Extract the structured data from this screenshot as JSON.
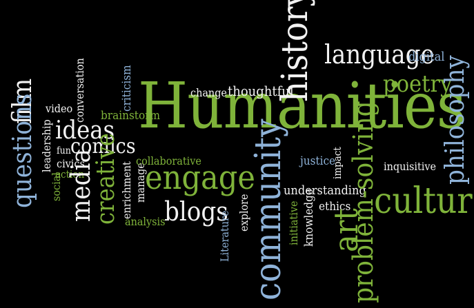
{
  "colors": {
    "background": "#000000",
    "green": "#7fb33a",
    "light_blue": "#8fb3d9",
    "white": "#f2f2f2",
    "gray": "#b9c2b0"
  },
  "words": [
    {
      "id": "humanities",
      "text": "Humanities",
      "color": "green",
      "rot": 0
    },
    {
      "id": "history",
      "text": "history",
      "color": "white",
      "rot": -90
    },
    {
      "id": "language",
      "text": "language",
      "color": "white",
      "rot": 0
    },
    {
      "id": "digital",
      "text": "digital",
      "color": "light_blue",
      "rot": 0
    },
    {
      "id": "poetry",
      "text": "poetry",
      "color": "green",
      "rot": 0
    },
    {
      "id": "philosophy",
      "text": "philosophy",
      "color": "light_blue",
      "rot": -90
    },
    {
      "id": "culture",
      "text": "culture",
      "color": "green",
      "rot": 0
    },
    {
      "id": "inquisitive",
      "text": "inquisitive",
      "color": "white",
      "rot": 0
    },
    {
      "id": "change",
      "text": "change",
      "color": "white",
      "rot": 0
    },
    {
      "id": "thoughtful",
      "text": "thoughtful",
      "color": "white",
      "rot": 0
    },
    {
      "id": "criticism",
      "text": "criticism",
      "color": "light_blue",
      "rot": -90
    },
    {
      "id": "conversation",
      "text": "conversation",
      "color": "white",
      "rot": -90
    },
    {
      "id": "brainstorm",
      "text": "brainstorm",
      "color": "green",
      "rot": 0
    },
    {
      "id": "video",
      "text": "video",
      "color": "white",
      "rot": 0
    },
    {
      "id": "film",
      "text": "film",
      "color": "white",
      "rot": -90
    },
    {
      "id": "questions",
      "text": "questions",
      "color": "light_blue",
      "rot": -90
    },
    {
      "id": "ideas",
      "text": "ideas",
      "color": "white",
      "rot": 0
    },
    {
      "id": "comics",
      "text": "comics",
      "color": "white",
      "rot": 0
    },
    {
      "id": "leadership",
      "text": "leadership",
      "color": "white",
      "rot": -90
    },
    {
      "id": "fun",
      "text": "fun",
      "color": "white",
      "rot": 0
    },
    {
      "id": "civics",
      "text": "civics",
      "color": "white",
      "rot": 0
    },
    {
      "id": "action",
      "text": "action",
      "color": "green",
      "rot": 0
    },
    {
      "id": "social",
      "text": "social",
      "color": "green",
      "rot": -90
    },
    {
      "id": "media",
      "text": "media",
      "color": "white",
      "rot": -90
    },
    {
      "id": "creative",
      "text": "creative",
      "color": "green",
      "rot": -90
    },
    {
      "id": "enrichment",
      "text": "enrichment",
      "color": "white",
      "rot": -90
    },
    {
      "id": "manage",
      "text": "manage",
      "color": "white",
      "rot": -90
    },
    {
      "id": "collaborative",
      "text": "collaborative",
      "color": "green",
      "rot": 0
    },
    {
      "id": "engage",
      "text": "engage",
      "color": "green",
      "rot": 0
    },
    {
      "id": "blogs",
      "text": "blogs",
      "color": "white",
      "rot": 0
    },
    {
      "id": "analysis",
      "text": "analysis",
      "color": "green",
      "rot": 0
    },
    {
      "id": "community",
      "text": "community",
      "color": "light_blue",
      "rot": -90
    },
    {
      "id": "explore",
      "text": "explore",
      "color": "white",
      "rot": -90
    },
    {
      "id": "literature",
      "text": "Literature",
      "color": "light_blue",
      "rot": -90
    },
    {
      "id": "justice",
      "text": "justice",
      "color": "light_blue",
      "rot": 0
    },
    {
      "id": "impact",
      "text": "impact",
      "color": "white",
      "rot": -90
    },
    {
      "id": "understanding",
      "text": "understanding",
      "color": "white",
      "rot": 0
    },
    {
      "id": "ethics",
      "text": "ethics",
      "color": "white",
      "rot": 0
    },
    {
      "id": "knowledge",
      "text": "knowledge",
      "color": "white",
      "rot": -90
    },
    {
      "id": "initiative",
      "text": "initiative",
      "color": "green",
      "rot": -90
    },
    {
      "id": "art",
      "text": "art",
      "color": "green",
      "rot": -90
    },
    {
      "id": "problem_solving",
      "text": "problem-solving",
      "color": "green",
      "rot": -90
    }
  ]
}
